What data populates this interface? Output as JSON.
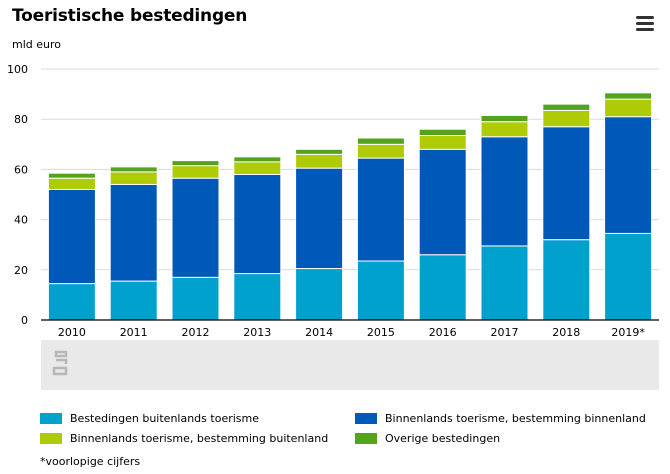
{
  "title": "Toeristische bestedingen",
  "unit": "mld euro",
  "menu_icon": "hamburger-menu-icon",
  "watermark_icon": "cbs-logo-icon",
  "footnote": "*voorlopige cijfers",
  "legend": [
    {
      "label": "Bestedingen buitenlands toerisme",
      "color": "#00a1cd"
    },
    {
      "label": "Binnenlands toerisme, bestemming binnenland",
      "color": "#0058b8"
    },
    {
      "label": "Binnenlands toerisme, bestemming buitenland",
      "color": "#afcb05"
    },
    {
      "label": "Overige bestedingen",
      "color": "#53a31d"
    }
  ],
  "chart_data": {
    "type": "bar",
    "stacked": true,
    "categories": [
      "2010",
      "2011",
      "2012",
      "2013",
      "2014",
      "2015",
      "2016",
      "2017",
      "2018",
      "2019*"
    ],
    "series": [
      {
        "name": "Bestedingen buitenlands toerisme",
        "color": "#00a1cd",
        "values": [
          14.5,
          15.5,
          17,
          18.5,
          20.5,
          23.5,
          26,
          29.5,
          32,
          34.5
        ]
      },
      {
        "name": "Binnenlands toerisme, bestemming binnenland",
        "color": "#0058b8",
        "values": [
          37.5,
          38.5,
          39.5,
          39.5,
          40,
          41,
          42,
          43.5,
          45,
          46.5
        ]
      },
      {
        "name": "Binnenlands toerisme, bestemming buitenland",
        "color": "#afcb05",
        "values": [
          4.5,
          5,
          5,
          5,
          5.5,
          5.5,
          5.5,
          6,
          6.5,
          7
        ]
      },
      {
        "name": "Overige bestedingen",
        "color": "#53a31d",
        "values": [
          2,
          2,
          2,
          2,
          2,
          2.5,
          2.5,
          2.5,
          2.5,
          2.5
        ]
      }
    ],
    "ylim": [
      0,
      100
    ],
    "yticks": [
      0,
      20,
      40,
      60,
      80,
      100
    ],
    "grid": true,
    "legend_position": "bottom"
  }
}
